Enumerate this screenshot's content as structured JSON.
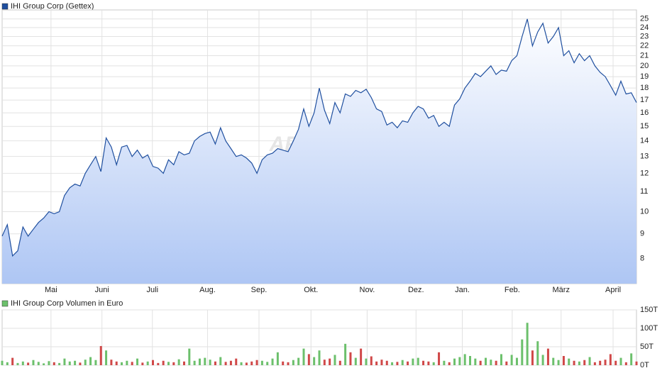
{
  "chart_data": [
    {
      "type": "line",
      "log_scale": true,
      "grid": true,
      "watermark": "ARIVA.DE",
      "xlim": [
        0,
        122
      ],
      "xticks": [
        {
          "value": 9.4,
          "label": "Mai"
        },
        {
          "value": 19.2,
          "label": "Juni"
        },
        {
          "value": 28.9,
          "label": "Juli"
        },
        {
          "value": 39.5,
          "label": "Aug."
        },
        {
          "value": 49.4,
          "label": "Sep."
        },
        {
          "value": 59.4,
          "label": "Okt."
        },
        {
          "value": 70.2,
          "label": "Nov."
        },
        {
          "value": 79.6,
          "label": "Dez."
        },
        {
          "value": 88.5,
          "label": "Jan."
        },
        {
          "value": 98.1,
          "label": "Feb."
        },
        {
          "value": 107.5,
          "label": "März"
        },
        {
          "value": 117.5,
          "label": "April"
        }
      ],
      "ylim": [
        7.1,
        26.1
      ],
      "yticks": [
        8,
        9,
        10,
        11,
        12,
        13,
        14,
        15,
        16,
        17,
        18,
        19,
        20,
        21,
        22,
        23,
        24,
        25
      ],
      "series": [
        {
          "name": "IHI Group Corp (Gettex)",
          "color": "#1f4f9f",
          "values": [
            8.9,
            9.4,
            8.1,
            8.3,
            9.3,
            8.9,
            9.2,
            9.5,
            9.7,
            10.0,
            9.9,
            10.0,
            10.8,
            11.2,
            11.4,
            11.3,
            12.0,
            12.5,
            13.0,
            12.1,
            14.2,
            13.6,
            12.5,
            13.6,
            13.7,
            13.0,
            13.4,
            12.9,
            13.1,
            12.4,
            12.3,
            12.0,
            12.8,
            12.5,
            13.3,
            13.1,
            13.2,
            14.0,
            14.3,
            14.5,
            14.6,
            13.8,
            14.9,
            14.0,
            13.5,
            13.0,
            13.1,
            12.9,
            12.6,
            12.0,
            12.8,
            13.1,
            13.2,
            13.5,
            13.4,
            13.3,
            14.0,
            14.8,
            16.3,
            15.0,
            16.0,
            18.0,
            16.2,
            15.2,
            16.8,
            16.0,
            17.5,
            17.3,
            17.8,
            17.6,
            17.9,
            17.2,
            16.3,
            16.1,
            15.1,
            15.3,
            14.9,
            15.4,
            15.3,
            16.0,
            16.5,
            16.3,
            15.6,
            15.8,
            15.0,
            15.3,
            15.0,
            16.6,
            17.1,
            18.0,
            18.6,
            19.3,
            19.0,
            19.5,
            20.0,
            19.2,
            19.6,
            19.5,
            20.5,
            21.0,
            23.0,
            25.0,
            22.0,
            23.5,
            24.5,
            22.3,
            23.0,
            24.0,
            21.0,
            21.5,
            20.3,
            21.2,
            20.5,
            21.0,
            20.0,
            19.4,
            19.0,
            18.2,
            17.4,
            18.6,
            17.5,
            17.6,
            16.8
          ]
        }
      ]
    },
    {
      "type": "bar",
      "grid": true,
      "ylim": [
        0,
        150
      ],
      "yticks": [
        {
          "value": 0,
          "label": "0T"
        },
        {
          "value": 50,
          "label": "50T"
        },
        {
          "value": 100,
          "label": "100T"
        },
        {
          "value": 150,
          "label": "150T"
        }
      ],
      "up_color": "#6cc06c",
      "down_color": "#d04848",
      "series": [
        {
          "name": "IHI Group Corp Volumen in Euro",
          "color": "#6cc06c",
          "values": [
            12,
            8,
            20,
            6,
            10,
            7,
            14,
            9,
            5,
            11,
            8,
            6,
            18,
            10,
            12,
            7,
            15,
            22,
            14,
            52,
            40,
            15,
            10,
            8,
            12,
            9,
            18,
            7,
            10,
            14,
            6,
            12,
            9,
            8,
            16,
            10,
            45,
            12,
            18,
            20,
            15,
            10,
            22,
            9,
            12,
            18,
            8,
            7,
            10,
            14,
            12,
            9,
            18,
            35,
            10,
            8,
            14,
            20,
            45,
            30,
            22,
            40,
            15,
            18,
            28,
            12,
            58,
            35,
            20,
            45,
            18,
            24,
            10,
            15,
            12,
            8,
            9,
            14,
            10,
            18,
            20,
            12,
            10,
            8,
            35,
            12,
            8,
            18,
            22,
            30,
            25,
            18,
            12,
            20,
            15,
            12,
            30,
            10,
            28,
            20,
            70,
            115,
            40,
            65,
            28,
            45,
            20,
            14,
            25,
            18,
            12,
            10,
            14,
            22,
            8,
            12,
            15,
            30,
            12,
            20,
            8,
            32,
            10
          ]
        }
      ]
    }
  ]
}
